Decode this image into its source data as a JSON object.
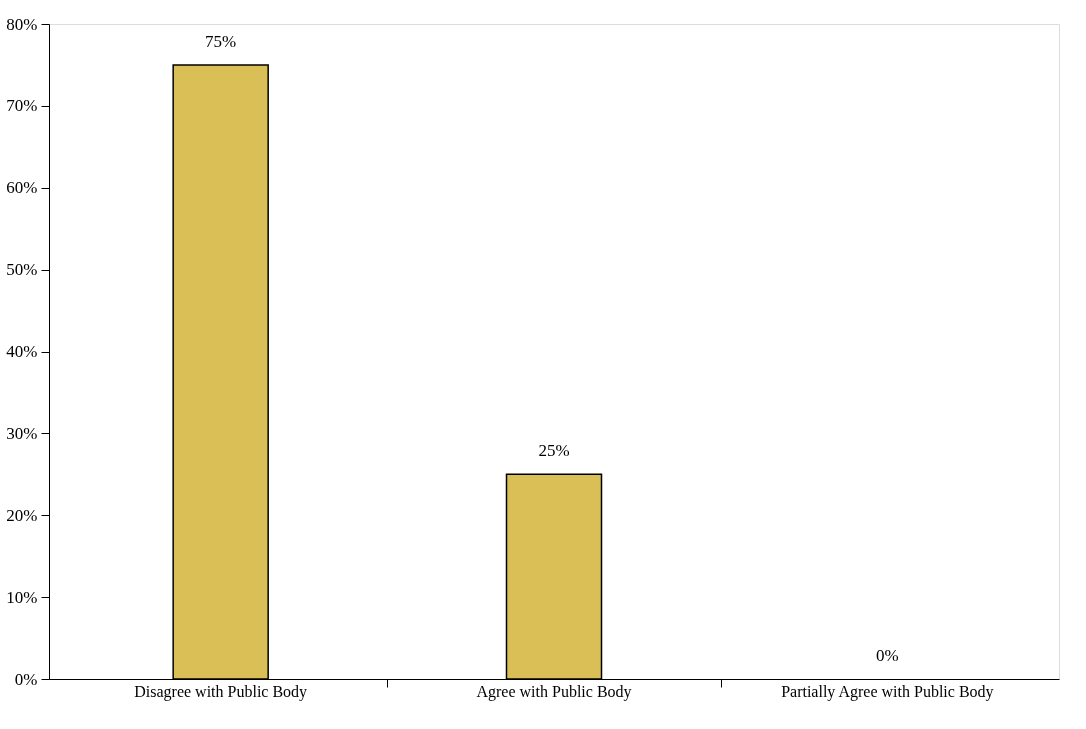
{
  "chart_data": {
    "type": "bar",
    "categories": [
      "Disagree with Public Body",
      "Agree with Public Body",
      "Partially Agree with Public Body"
    ],
    "values": [
      75,
      25,
      0
    ],
    "value_labels": [
      "75%",
      "25%",
      "0%"
    ],
    "color": "#d9bf55",
    "ylim": [
      0,
      80
    ],
    "yticks": [
      {
        "value": 0,
        "label": "0%"
      },
      {
        "value": 10,
        "label": "10%"
      },
      {
        "value": 20,
        "label": "20%"
      },
      {
        "value": 30,
        "label": "30%"
      },
      {
        "value": 40,
        "label": "40%"
      },
      {
        "value": 50,
        "label": "50%"
      },
      {
        "value": 60,
        "label": "60%"
      },
      {
        "value": 70,
        "label": "70%"
      },
      {
        "value": 80,
        "label": "80%"
      }
    ],
    "grid": false
  }
}
